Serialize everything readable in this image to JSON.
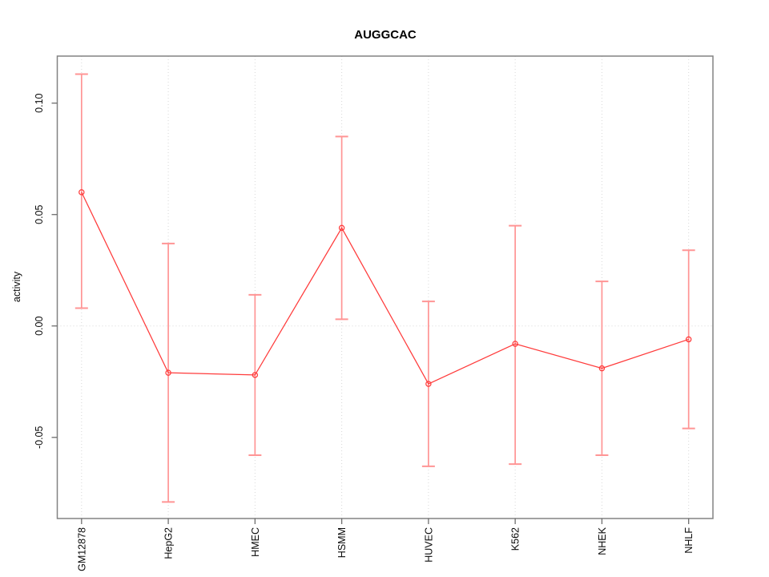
{
  "chart_data": {
    "type": "line",
    "title": "AUGGCAC",
    "xlabel": "",
    "ylabel": "activity",
    "categories": [
      "GM12878",
      "HepG2",
      "HMEC",
      "HSMM",
      "HUVEC",
      "K562",
      "NHEK",
      "NHLF"
    ],
    "series": [
      {
        "name": "activity",
        "values": [
          0.06,
          -0.021,
          -0.022,
          0.044,
          -0.026,
          -0.008,
          -0.019,
          -0.006
        ],
        "error_low": [
          0.008,
          -0.079,
          -0.058,
          0.003,
          -0.063,
          -0.062,
          -0.058,
          -0.046
        ],
        "error_high": [
          0.113,
          0.037,
          0.014,
          0.085,
          0.011,
          0.045,
          0.02,
          0.034
        ]
      }
    ],
    "yticks": [
      -0.05,
      0,
      0.05,
      0.1
    ],
    "ytick_labels": [
      "-0.05",
      "0.00",
      "0.05",
      "0.10"
    ],
    "ylim": [
      -0.0864,
      0.1211
    ],
    "marker": "open-circle",
    "legend": "none",
    "grid": {
      "horizontal_at_zero": true,
      "vertical_at_categories": true,
      "style": "dotted"
    },
    "colors": {
      "line": "#ff3b3b",
      "point": "#ff3b3b",
      "error_bar": "#ff9595",
      "grid": "#d8d8d8",
      "box": "#828282",
      "tick": "#6e6e6e",
      "text": "#000000"
    }
  }
}
